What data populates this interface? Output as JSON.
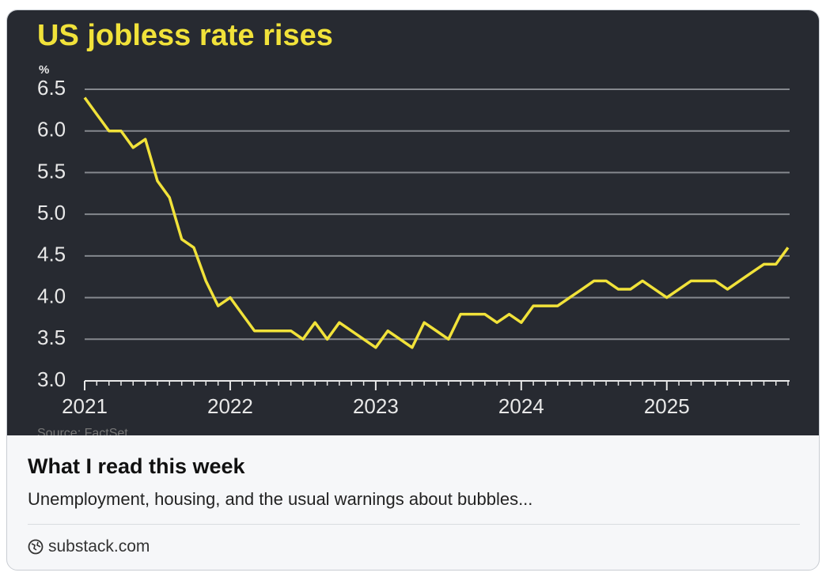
{
  "card": {
    "headline": "What I read this week",
    "description": "Unemployment, housing, and the usual warnings about bubbles...",
    "domain": "substack.com"
  },
  "chart_data": {
    "type": "line",
    "title": "US jobless rate rises",
    "y_label": "%",
    "source": "Source: FactSet",
    "x": [
      2021,
      2021.083,
      2021.167,
      2021.25,
      2021.333,
      2021.417,
      2021.5,
      2021.583,
      2021.667,
      2021.75,
      2021.833,
      2021.917,
      2022,
      2022.083,
      2022.167,
      2022.25,
      2022.333,
      2022.417,
      2022.5,
      2022.583,
      2022.667,
      2022.75,
      2022.833,
      2022.917,
      2023,
      2023.083,
      2023.167,
      2023.25,
      2023.333,
      2023.417,
      2023.5,
      2023.583,
      2023.667,
      2023.75,
      2023.833,
      2023.917,
      2024,
      2024.083,
      2024.167,
      2024.25,
      2024.333,
      2024.417,
      2024.5,
      2024.583,
      2024.667,
      2024.75,
      2024.833,
      2024.917,
      2025,
      2025.083,
      2025.167,
      2025.25,
      2025.333,
      2025.417,
      2025.5,
      2025.583,
      2025.667,
      2025.75,
      2025.833
    ],
    "series": [
      {
        "name": "US jobless rate",
        "color": "#f1e23a",
        "values": [
          6.4,
          6.2,
          6.0,
          6.0,
          5.8,
          5.9,
          5.4,
          5.2,
          4.7,
          4.6,
          4.2,
          3.9,
          4.0,
          3.8,
          3.6,
          3.6,
          3.6,
          3.6,
          3.5,
          3.7,
          3.5,
          3.7,
          3.6,
          3.5,
          3.4,
          3.6,
          3.5,
          3.4,
          3.7,
          3.6,
          3.5,
          3.8,
          3.8,
          3.8,
          3.7,
          3.8,
          3.7,
          3.9,
          3.9,
          3.9,
          4.0,
          4.1,
          4.2,
          4.2,
          4.1,
          4.1,
          4.2,
          4.1,
          4.0,
          4.1,
          4.2,
          4.2,
          4.2,
          4.1,
          4.2,
          4.3,
          4.4,
          4.4,
          4.6
        ]
      }
    ],
    "xlim": [
      2021,
      2025.833
    ],
    "xticks": [
      2021,
      2022,
      2023,
      2024,
      2025
    ],
    "ylim": [
      3,
      6.5
    ],
    "yticks": [
      {
        "value": 3,
        "label": "3.0"
      },
      3.5,
      {
        "value": 4,
        "label": "4.0"
      },
      4.5,
      {
        "value": 5,
        "label": "5.0"
      },
      5.5,
      {
        "value": 6,
        "label": "6.0"
      },
      6.5
    ],
    "grid": true
  }
}
